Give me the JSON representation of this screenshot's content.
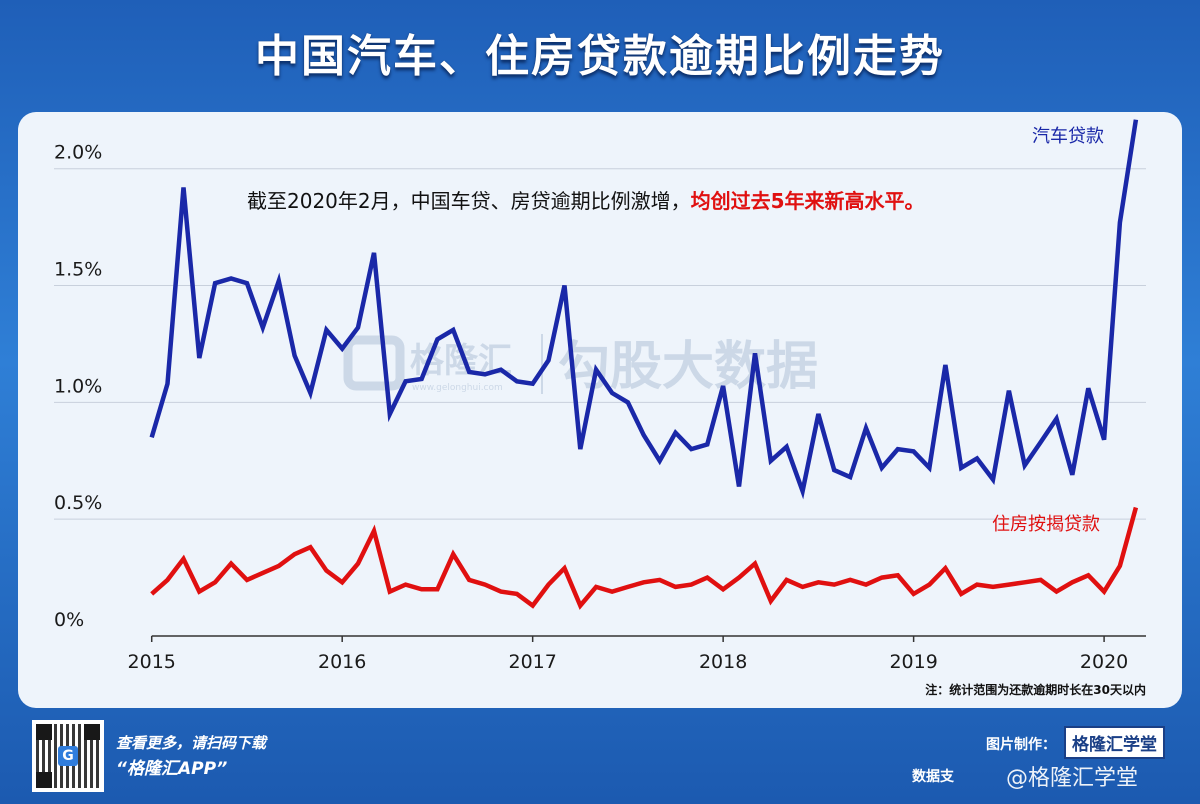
{
  "title": "中国汽车、住房贷款逾期比例走势",
  "colors": {
    "auto": "#1a28a8",
    "mortgage": "#e01010",
    "grid": "#c8d0dc",
    "accent": "#e01010"
  },
  "chart_data": {
    "type": "line",
    "x_start": 2015.0,
    "x_step_per_point": 0.0833,
    "xlim": [
      2014.97,
      2020.22
    ],
    "ylim": [
      0,
      2.2
    ],
    "x_ticks": [
      {
        "value": 2015,
        "label": "2015"
      },
      {
        "value": 2016,
        "label": "2016"
      },
      {
        "value": 2017,
        "label": "2017"
      },
      {
        "value": 2018,
        "label": "2018"
      },
      {
        "value": 2019,
        "label": "2019"
      },
      {
        "value": 2020,
        "label": "2020"
      }
    ],
    "y_ticks": [
      {
        "value": 0,
        "label": "0%"
      },
      {
        "value": 0.5,
        "label": "0.5%"
      },
      {
        "value": 1.0,
        "label": "1.0%"
      },
      {
        "value": 1.5,
        "label": "1.5%"
      },
      {
        "value": 2.0,
        "label": "2.0%"
      }
    ],
    "series": [
      {
        "name": "汽车贷款",
        "color": "#1a28a8",
        "points": [
          [
            2015.0,
            0.85
          ],
          [
            2015.083,
            1.08
          ],
          [
            2015.167,
            1.92
          ],
          [
            2015.25,
            1.19
          ],
          [
            2015.333,
            1.51
          ],
          [
            2015.417,
            1.53
          ],
          [
            2015.5,
            1.51
          ],
          [
            2015.583,
            1.32
          ],
          [
            2015.667,
            1.52
          ],
          [
            2015.75,
            1.2
          ],
          [
            2015.833,
            1.04
          ],
          [
            2015.917,
            1.31
          ],
          [
            2016.0,
            1.23
          ],
          [
            2016.083,
            1.32
          ],
          [
            2016.167,
            1.64
          ],
          [
            2016.25,
            0.95
          ],
          [
            2016.333,
            1.09
          ],
          [
            2016.417,
            1.1
          ],
          [
            2016.5,
            1.27
          ],
          [
            2016.583,
            1.31
          ],
          [
            2016.667,
            1.13
          ],
          [
            2016.75,
            1.12
          ],
          [
            2016.833,
            1.14
          ],
          [
            2016.917,
            1.09
          ],
          [
            2017.0,
            1.08
          ],
          [
            2017.083,
            1.18
          ],
          [
            2017.167,
            1.5
          ],
          [
            2017.25,
            0.8
          ],
          [
            2017.333,
            1.14
          ],
          [
            2017.417,
            1.04
          ],
          [
            2017.5,
            1.0
          ],
          [
            2017.583,
            0.86
          ],
          [
            2017.667,
            0.75
          ],
          [
            2017.75,
            0.87
          ],
          [
            2017.833,
            0.8
          ],
          [
            2017.917,
            0.82
          ],
          [
            2018.0,
            1.07
          ],
          [
            2018.083,
            0.64
          ],
          [
            2018.167,
            1.21
          ],
          [
            2018.25,
            0.75
          ],
          [
            2018.333,
            0.81
          ],
          [
            2018.417,
            0.62
          ],
          [
            2018.5,
            0.95
          ],
          [
            2018.583,
            0.71
          ],
          [
            2018.667,
            0.68
          ],
          [
            2018.75,
            0.89
          ],
          [
            2018.833,
            0.72
          ],
          [
            2018.917,
            0.8
          ],
          [
            2019.0,
            0.79
          ],
          [
            2019.083,
            0.72
          ],
          [
            2019.167,
            1.16
          ],
          [
            2019.25,
            0.72
          ],
          [
            2019.333,
            0.76
          ],
          [
            2019.417,
            0.67
          ],
          [
            2019.5,
            1.05
          ],
          [
            2019.583,
            0.73
          ],
          [
            2019.667,
            0.83
          ],
          [
            2019.75,
            0.93
          ],
          [
            2019.833,
            0.69
          ],
          [
            2019.917,
            1.06
          ],
          [
            2020.0,
            0.84
          ],
          [
            2020.083,
            1.77
          ],
          [
            2020.167,
            2.21
          ]
        ],
        "label": "汽车贷款"
      },
      {
        "name": "住房按揭贷款",
        "color": "#e01010",
        "points": [
          [
            2015.0,
            0.18
          ],
          [
            2015.083,
            0.24
          ],
          [
            2015.167,
            0.33
          ],
          [
            2015.25,
            0.19
          ],
          [
            2015.333,
            0.23
          ],
          [
            2015.417,
            0.31
          ],
          [
            2015.5,
            0.24
          ],
          [
            2015.583,
            0.27
          ],
          [
            2015.667,
            0.3
          ],
          [
            2015.75,
            0.35
          ],
          [
            2015.833,
            0.38
          ],
          [
            2015.917,
            0.28
          ],
          [
            2016.0,
            0.23
          ],
          [
            2016.083,
            0.31
          ],
          [
            2016.167,
            0.45
          ],
          [
            2016.25,
            0.19
          ],
          [
            2016.333,
            0.22
          ],
          [
            2016.417,
            0.2
          ],
          [
            2016.5,
            0.2
          ],
          [
            2016.583,
            0.35
          ],
          [
            2016.667,
            0.24
          ],
          [
            2016.75,
            0.22
          ],
          [
            2016.833,
            0.19
          ],
          [
            2016.917,
            0.18
          ],
          [
            2017.0,
            0.13
          ],
          [
            2017.083,
            0.22
          ],
          [
            2017.167,
            0.29
          ],
          [
            2017.25,
            0.13
          ],
          [
            2017.333,
            0.21
          ],
          [
            2017.417,
            0.19
          ],
          [
            2017.5,
            0.21
          ],
          [
            2017.583,
            0.23
          ],
          [
            2017.667,
            0.24
          ],
          [
            2017.75,
            0.21
          ],
          [
            2017.833,
            0.22
          ],
          [
            2017.917,
            0.25
          ],
          [
            2018.0,
            0.2
          ],
          [
            2018.083,
            0.25
          ],
          [
            2018.167,
            0.31
          ],
          [
            2018.25,
            0.15
          ],
          [
            2018.333,
            0.24
          ],
          [
            2018.417,
            0.21
          ],
          [
            2018.5,
            0.23
          ],
          [
            2018.583,
            0.22
          ],
          [
            2018.667,
            0.24
          ],
          [
            2018.75,
            0.22
          ],
          [
            2018.833,
            0.25
          ],
          [
            2018.917,
            0.26
          ],
          [
            2019.0,
            0.18
          ],
          [
            2019.083,
            0.22
          ],
          [
            2019.167,
            0.29
          ],
          [
            2019.25,
            0.18
          ],
          [
            2019.333,
            0.22
          ],
          [
            2019.417,
            0.21
          ],
          [
            2019.5,
            0.22
          ],
          [
            2019.583,
            0.23
          ],
          [
            2019.667,
            0.24
          ],
          [
            2019.75,
            0.19
          ],
          [
            2019.833,
            0.23
          ],
          [
            2019.917,
            0.26
          ],
          [
            2020.0,
            0.19
          ],
          [
            2020.083,
            0.3
          ],
          [
            2020.167,
            0.55
          ]
        ],
        "label": "住房按揭贷款"
      }
    ],
    "annotation_black": "截至2020年2月，中国车贷、房贷逾期比例激增，",
    "annotation_red": "均创过去5年来新高水平。",
    "watermark_brand": "格隆汇",
    "watermark_site": "www.gelonghui.com",
    "watermark_text": "勾股大数据",
    "note": "注：统计范围为还款逾期时长在30天以内"
  },
  "footer": {
    "line1": "查看更多，请扫码下载",
    "line2": "“格隆汇APP”",
    "made_by_label": "图片制作：",
    "made_by_brand": "格隆汇学堂",
    "data_support": "数据支",
    "weibo_text": "@格隆汇学堂",
    "qr_badge": "G"
  }
}
